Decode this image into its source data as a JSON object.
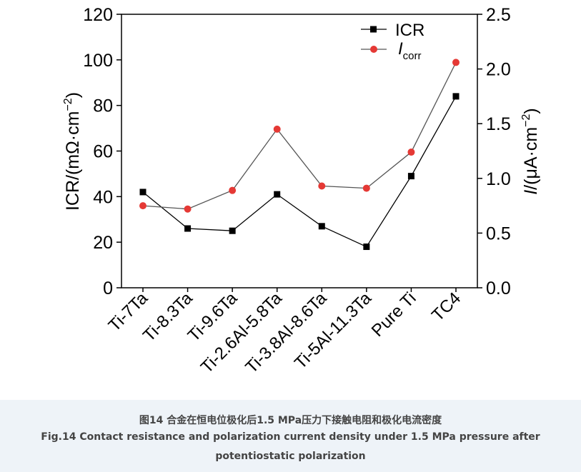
{
  "chart_data": {
    "type": "line",
    "categories": [
      "Ti-7Ta",
      "Ti-8.3Ta",
      "Ti-9.6Ta",
      "Ti-2.6Al-5.8Ta",
      "Ti-3.8Al-8.6Ta",
      "Ti-5Al-11.3Ta",
      "Pure Ti",
      "TC4"
    ],
    "y_left": {
      "label_main": "ICR/(mΩ·cm",
      "label_sup": "−2",
      "label_end": ")",
      "range": [
        0,
        120
      ],
      "ticks": [
        "0",
        "20",
        "40",
        "60",
        "80",
        "100",
        "120"
      ]
    },
    "y_right": {
      "label_italic": "I",
      "label_main": "/(μA·cm",
      "label_sup": "−2",
      "label_end": ")",
      "range": [
        0,
        2.5
      ],
      "ticks": [
        "0.0",
        "0.5",
        "1.0",
        "1.5",
        "2.0",
        "2.5"
      ]
    },
    "series": [
      {
        "name": "ICR",
        "axis": "left",
        "marker": "square",
        "color": "#000000",
        "values": [
          42,
          26,
          25,
          41,
          27,
          18,
          49,
          84
        ]
      },
      {
        "name_italic": "I",
        "name_sub": "corr",
        "axis": "right",
        "marker": "circle",
        "color": "#e53935",
        "line_color": "#555555",
        "values": [
          0.75,
          0.72,
          0.89,
          1.45,
          0.93,
          0.91,
          1.24,
          2.06
        ]
      }
    ],
    "legend_position": "top-right",
    "grid": false
  },
  "caption": {
    "zh": "图14 合金在恒电位极化后1.5 MPa压力下接触电阻和极化电流密度",
    "en": "Fig.14 Contact resistance and polarization current density under 1.5 MPa pressure after potentiostatic polarization"
  }
}
